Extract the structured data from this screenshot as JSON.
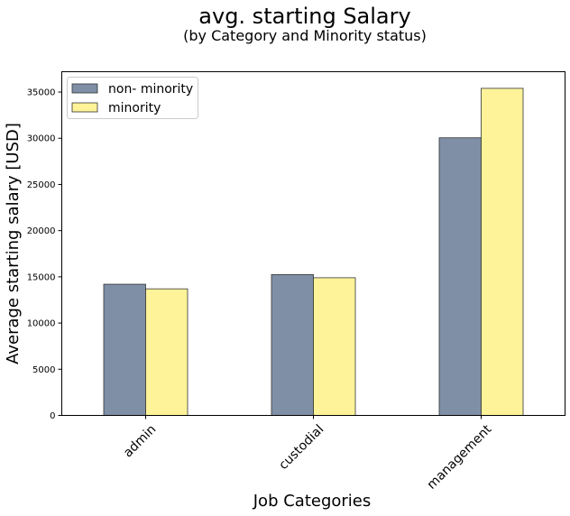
{
  "chart_data": {
    "type": "bar",
    "title": "avg. starting Salary",
    "subtitle": "(by Category and Minority status)",
    "xlabel": "Job Categories",
    "ylabel": "Average starting salary [USD]",
    "categories": [
      "admin",
      "custodial",
      "management"
    ],
    "series": [
      {
        "name": "non- minority",
        "values": [
          14200,
          15250,
          30050
        ],
        "color": "#7f8fa6"
      },
      {
        "name": "minority",
        "values": [
          13700,
          14900,
          35400
        ],
        "color": "#fff39a"
      }
    ],
    "ylim": [
      0,
      37200
    ],
    "yticks": [
      "0",
      "5000",
      "10000",
      "15000",
      "20000",
      "25000",
      "30000",
      "35000"
    ],
    "grid": false,
    "legend_position": "top-left"
  }
}
